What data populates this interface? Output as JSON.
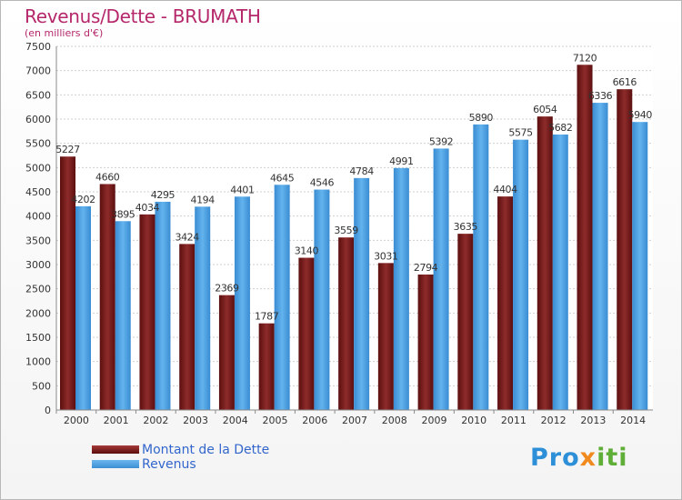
{
  "title": "Revenus/Dette - BRUMATH",
  "subtitle": "(en milliers d'€)",
  "colors": {
    "debt": "#7a1f1f",
    "revenue": "#4fa3e6",
    "axis_text": "#333333"
  },
  "chart_data": {
    "type": "bar",
    "categories": [
      "2000",
      "2001",
      "2002",
      "2003",
      "2004",
      "2005",
      "2006",
      "2007",
      "2008",
      "2009",
      "2010",
      "2011",
      "2012",
      "2013",
      "2014"
    ],
    "series": [
      {
        "name": "Montant de la Dette",
        "values": [
          5227,
          4660,
          4034,
          3424,
          2369,
          1787,
          3140,
          3559,
          3031,
          2794,
          3635,
          4404,
          6054,
          7120,
          6616
        ],
        "labels": [
          "5227",
          "4660",
          "4034",
          "3424",
          "2369",
          "1787",
          "3140",
          "3559",
          "3031",
          "2794",
          "3635",
          "4404",
          "6054",
          "7120",
          "6616"
        ]
      },
      {
        "name": "Revenus",
        "values": [
          4202,
          3895,
          4295,
          4194,
          4401,
          4645,
          4546,
          4784,
          4991,
          5392,
          5890,
          5575,
          5682,
          6336,
          5940
        ],
        "labels": [
          "4202",
          "3895",
          "4295",
          "4194",
          "4401",
          "4645",
          "4546",
          "4784",
          "4991",
          "5392",
          "5890",
          "5575",
          "5682",
          "6336",
          "5940"
        ]
      }
    ],
    "yticks": [
      0,
      500,
      1000,
      1500,
      2000,
      2500,
      3000,
      3500,
      4000,
      4500,
      5000,
      5500,
      6000,
      6500,
      7000,
      7500
    ],
    "ylim": [
      0,
      7500
    ],
    "grid": true,
    "legend_position": "bottom-left"
  },
  "legend": {
    "debt_label": "Montant de la Dette",
    "revenue_label": "Revenus"
  },
  "logo": {
    "p1": "Pro",
    "p2": "x",
    "p3": "iti"
  }
}
